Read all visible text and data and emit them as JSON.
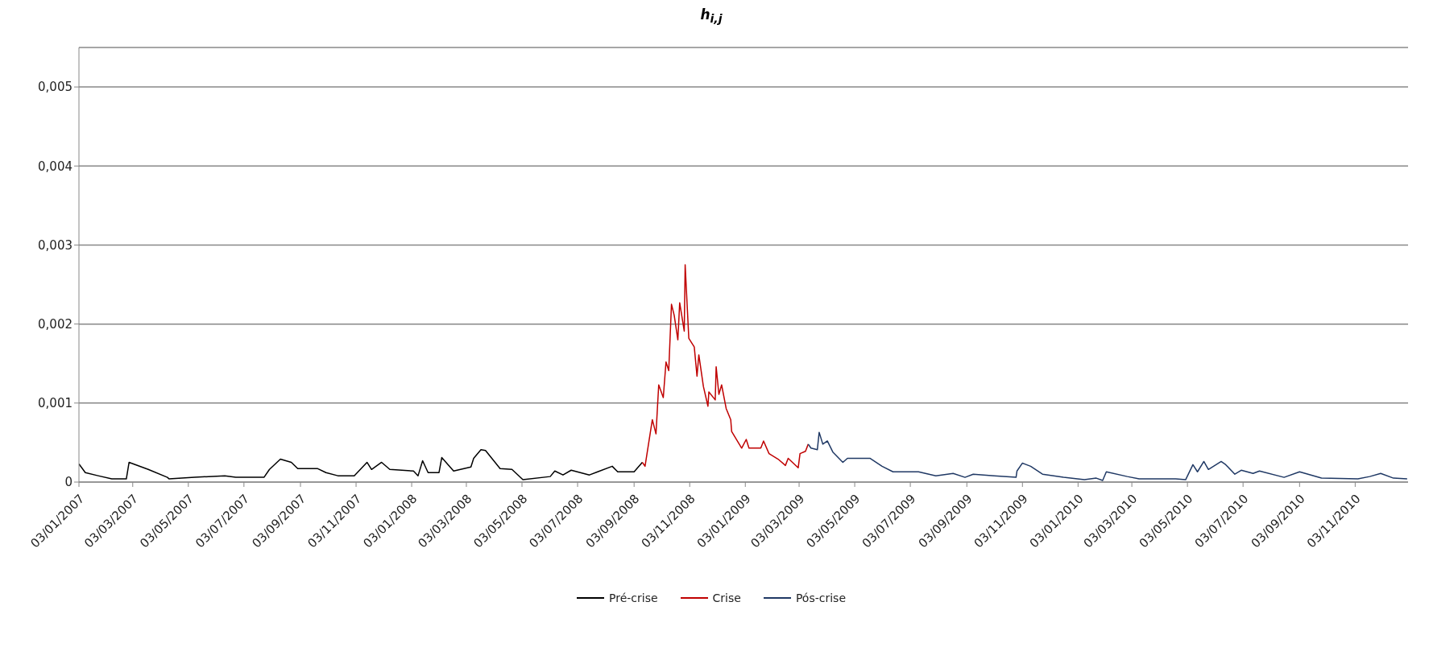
{
  "chart_data": {
    "type": "line",
    "title": "h$_{i,j}$",
    "xlim": [
      "2007-01-03",
      "2010-12-31"
    ],
    "xticks": [
      {
        "value": "2007-01-03",
        "label": "03/01/2007"
      },
      {
        "value": "2007-03-03",
        "label": "03/03/2007"
      },
      {
        "value": "2007-05-03",
        "label": "03/05/2007"
      },
      {
        "value": "2007-07-03",
        "label": "03/07/2007"
      },
      {
        "value": "2007-09-03",
        "label": "03/09/2007"
      },
      {
        "value": "2007-11-03",
        "label": "03/11/2007"
      },
      {
        "value": "2008-01-03",
        "label": "03/01/2008"
      },
      {
        "value": "2008-03-03",
        "label": "03/03/2008"
      },
      {
        "value": "2008-05-03",
        "label": "03/05/2008"
      },
      {
        "value": "2008-07-03",
        "label": "03/07/2008"
      },
      {
        "value": "2008-09-03",
        "label": "03/09/2008"
      },
      {
        "value": "2008-11-03",
        "label": "03/11/2008"
      },
      {
        "value": "2009-01-03",
        "label": "03/01/2009"
      },
      {
        "value": "2009-03-03",
        "label": "03/03/2009"
      },
      {
        "value": "2009-05-03",
        "label": "03/05/2009"
      },
      {
        "value": "2009-07-03",
        "label": "03/07/2009"
      },
      {
        "value": "2009-09-03",
        "label": "03/09/2009"
      },
      {
        "value": "2009-11-03",
        "label": "03/11/2009"
      },
      {
        "value": "2010-01-03",
        "label": "03/01/2010"
      },
      {
        "value": "2010-03-03",
        "label": "03/03/2010"
      },
      {
        "value": "2010-05-03",
        "label": "03/05/2010"
      },
      {
        "value": "2010-07-03",
        "label": "03/07/2010"
      },
      {
        "value": "2010-09-03",
        "label": "03/09/2010"
      },
      {
        "value": "2010-11-03",
        "label": "03/11/2010"
      }
    ],
    "ylim": [
      0,
      0.0055
    ],
    "yticks": [
      0,
      {
        "value": 0.001,
        "label": "0,001"
      },
      {
        "value": 0.002,
        "label": "0,002"
      },
      {
        "value": 0.003,
        "label": "0,003"
      },
      {
        "value": 0.004,
        "label": "0,004"
      },
      {
        "value": 0.005,
        "label": "0,005"
      }
    ],
    "grid": "y",
    "legend": "bottom",
    "marker": "none",
    "line_style": "solid",
    "series": [
      {
        "name": "Pré-crise",
        "color": "#000000",
        "x": [
          "2007-01-03",
          "2007-01-10",
          "2007-01-24",
          "2007-02-08",
          "2007-02-24",
          "2007-02-27",
          "2007-03-20",
          "2007-04-10",
          "2007-04-12",
          "2007-05-10",
          "2007-06-12",
          "2007-06-24",
          "2007-07-25",
          "2007-07-31",
          "2007-08-12",
          "2007-08-24",
          "2007-08-31",
          "2007-09-22",
          "2007-10-01",
          "2007-10-14",
          "2007-11-01",
          "2007-11-15",
          "2007-11-20",
          "2007-12-01",
          "2007-12-10",
          "2008-01-05",
          "2008-01-10",
          "2008-01-15",
          "2008-01-21",
          "2008-02-02",
          "2008-02-05",
          "2008-02-18",
          "2008-03-08",
          "2008-03-11",
          "2008-03-19",
          "2008-03-24",
          "2008-04-09",
          "2008-04-22",
          "2008-05-04",
          "2008-06-03",
          "2008-06-08",
          "2008-06-17",
          "2008-06-26",
          "2008-07-16",
          "2008-07-25",
          "2008-08-10",
          "2008-08-16",
          "2008-09-03",
          "2008-09-12"
        ],
        "values": [
          0.00023,
          0.00012,
          8e-05,
          4e-05,
          4e-05,
          0.00025,
          0.00016,
          6e-05,
          4e-05,
          6e-05,
          8e-05,
          6e-05,
          6e-05,
          0.00016,
          0.00029,
          0.00025,
          0.00017,
          0.00017,
          0.00012,
          8e-05,
          8e-05,
          0.00025,
          0.00016,
          0.00025,
          0.00016,
          0.00014,
          8e-05,
          0.00027,
          0.00012,
          0.00012,
          0.00031,
          0.00014,
          0.00019,
          0.0003,
          0.00041,
          0.0004,
          0.00017,
          0.00016,
          3e-05,
          7e-05,
          0.00014,
          9e-05,
          0.00015,
          9e-05,
          0.00013,
          0.0002,
          0.00013,
          0.00013,
          0.00025
        ]
      },
      {
        "name": "Crise",
        "color": "#c00000",
        "x": [
          "2008-09-12",
          "2008-09-15",
          "2008-09-23",
          "2008-09-27",
          "2008-09-30",
          "2008-10-05",
          "2008-10-08",
          "2008-10-11",
          "2008-10-14",
          "2008-10-17",
          "2008-10-21",
          "2008-10-23",
          "2008-10-28",
          "2008-10-29",
          "2008-11-02",
          "2008-11-08",
          "2008-11-11",
          "2008-11-13",
          "2008-11-18",
          "2008-11-23",
          "2008-11-24",
          "2008-12-01",
          "2008-12-02",
          "2008-12-05",
          "2008-12-08",
          "2008-12-13",
          "2008-12-18",
          "2008-12-19",
          "2008-12-30",
          "2009-01-04",
          "2009-01-07",
          "2009-01-20",
          "2009-01-23",
          "2009-01-29",
          "2009-02-08",
          "2009-02-16",
          "2009-02-19",
          "2009-03-02",
          "2009-03-04",
          "2009-03-10",
          "2009-03-13"
        ],
        "values": [
          0.00025,
          0.0002,
          0.00079,
          0.00061,
          0.00123,
          0.00107,
          0.00152,
          0.00141,
          0.00225,
          0.00211,
          0.0018,
          0.00227,
          0.00191,
          0.00275,
          0.00182,
          0.00171,
          0.00134,
          0.00161,
          0.00121,
          0.00096,
          0.00114,
          0.00104,
          0.00146,
          0.00111,
          0.00123,
          0.00093,
          0.00079,
          0.00064,
          0.00043,
          0.00054,
          0.00043,
          0.00043,
          0.00052,
          0.00036,
          0.00029,
          0.00021,
          0.0003,
          0.00018,
          0.00036,
          0.00039,
          0.00048
        ]
      },
      {
        "name": "Pós-crise",
        "color": "#1f3864",
        "x": [
          "2009-03-13",
          "2009-03-16",
          "2009-03-23",
          "2009-03-25",
          "2009-03-29",
          "2009-04-03",
          "2009-04-09",
          "2009-04-20",
          "2009-04-25",
          "2009-05-20",
          "2009-06-02",
          "2009-06-14",
          "2009-07-12",
          "2009-07-31",
          "2009-08-19",
          "2009-09-01",
          "2009-09-10",
          "2009-10-03",
          "2009-10-27",
          "2009-10-28",
          "2009-11-03",
          "2009-11-12",
          "2009-11-25",
          "2009-12-18",
          "2010-01-10",
          "2010-01-23",
          "2010-01-30",
          "2010-02-03",
          "2010-02-26",
          "2010-03-11",
          "2010-04-20",
          "2010-05-01",
          "2010-05-09",
          "2010-05-14",
          "2010-05-21",
          "2010-05-26",
          "2010-06-09",
          "2010-06-14",
          "2010-06-24",
          "2010-07-01",
          "2010-07-14",
          "2010-07-21",
          "2010-08-17",
          "2010-09-03",
          "2010-09-27",
          "2010-11-06",
          "2010-11-19",
          "2010-12-01",
          "2010-12-15",
          "2010-12-30"
        ],
        "values": [
          0.00048,
          0.00043,
          0.00041,
          0.00063,
          0.00048,
          0.00052,
          0.00038,
          0.00025,
          0.0003,
          0.0003,
          0.0002,
          0.00013,
          0.00013,
          8e-05,
          0.00011,
          6e-05,
          0.0001,
          8e-05,
          6e-05,
          0.00014,
          0.00024,
          0.0002,
          0.0001,
          6e-05,
          3e-05,
          5e-05,
          2e-05,
          0.00013,
          7e-05,
          4e-05,
          4e-05,
          3e-05,
          0.00022,
          0.00013,
          0.00026,
          0.00016,
          0.00026,
          0.00022,
          0.0001,
          0.00015,
          0.00011,
          0.00014,
          6e-05,
          0.00013,
          5e-05,
          4e-05,
          7e-05,
          0.00011,
          5e-05,
          4e-05
        ]
      }
    ]
  }
}
